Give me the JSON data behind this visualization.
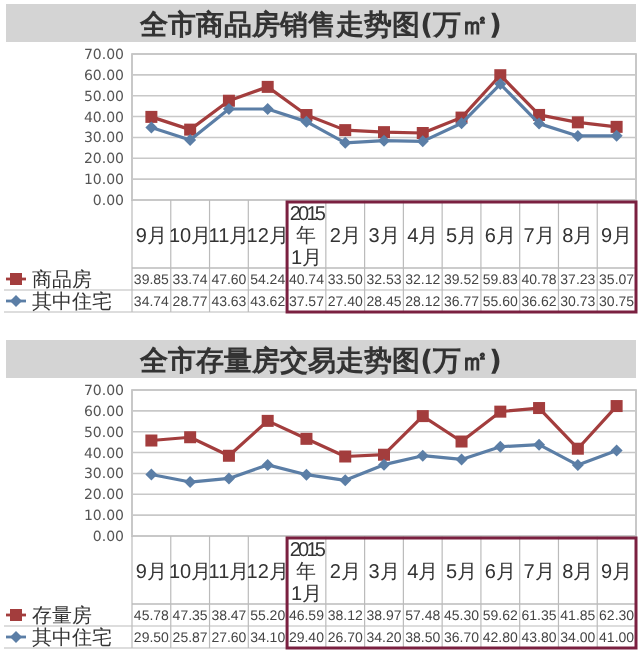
{
  "chart_data": [
    {
      "type": "line",
      "title": "全市商品房销售走势图(万㎡)",
      "categories": [
        "9月",
        "10月",
        "11月",
        "12月",
        "2015年1月",
        "2月",
        "3月",
        "4月",
        "5月",
        "6月",
        "7月",
        "8月",
        "9月"
      ],
      "ylim": [
        0,
        70
      ],
      "yticks": [
        {
          "value": 0,
          "label": "0.00"
        },
        {
          "value": 10,
          "label": "10.00"
        },
        {
          "value": 20,
          "label": "20.00"
        },
        {
          "value": 30,
          "label": "30.00"
        },
        {
          "value": 40,
          "label": "40.00"
        },
        {
          "value": 50,
          "label": "50.00"
        },
        {
          "value": 60,
          "label": "60.00"
        },
        {
          "value": 70,
          "label": "70.00"
        }
      ],
      "grid": "y",
      "legend": "bottom",
      "series": [
        {
          "name": "商品房",
          "color": "#a33d3d",
          "marker": "square",
          "values": [
            39.85,
            33.74,
            47.6,
            54.24,
            40.74,
            33.5,
            32.53,
            32.12,
            39.52,
            59.83,
            40.78,
            37.23,
            35.07
          ],
          "value_labels": [
            "39.85",
            "33.74",
            "47.60",
            "54.24",
            "40.74",
            "33.50",
            "32.53",
            "32.12",
            "39.52",
            "59.83",
            "40.78",
            "37.23",
            "35.07"
          ]
        },
        {
          "name": "其中住宅",
          "color": "#5b7ea6",
          "marker": "diamond",
          "values": [
            34.74,
            28.77,
            43.63,
            43.62,
            37.57,
            27.4,
            28.45,
            28.12,
            36.77,
            55.6,
            36.62,
            30.73,
            30.75
          ],
          "value_labels": [
            "34.74",
            "28.77",
            "43.63",
            "43.62",
            "37.57",
            "27.40",
            "28.45",
            "28.12",
            "36.77",
            "55.60",
            "36.62",
            "30.73",
            "30.75"
          ]
        }
      ]
    },
    {
      "type": "line",
      "title": "全市存量房交易走势图(万㎡)",
      "categories": [
        "9月",
        "10月",
        "11月",
        "12月",
        "2015年1月",
        "2月",
        "3月",
        "4月",
        "5月",
        "6月",
        "7月",
        "8月",
        "9月"
      ],
      "ylim": [
        0,
        70
      ],
      "yticks": [
        {
          "value": 0,
          "label": "0.00"
        },
        {
          "value": 10,
          "label": "10.00"
        },
        {
          "value": 20,
          "label": "20.00"
        },
        {
          "value": 30,
          "label": "30.00"
        },
        {
          "value": 40,
          "label": "40.00"
        },
        {
          "value": 50,
          "label": "50.00"
        },
        {
          "value": 60,
          "label": "60.00"
        },
        {
          "value": 70,
          "label": "70.00"
        }
      ],
      "grid": "y",
      "legend": "bottom",
      "series": [
        {
          "name": "存量房",
          "color": "#a33d3d",
          "marker": "square",
          "values": [
            45.78,
            47.35,
            38.47,
            55.2,
            46.59,
            38.12,
            38.97,
            57.48,
            45.3,
            59.62,
            61.35,
            41.85,
            62.3
          ],
          "value_labels": [
            "45.78",
            "47.35",
            "38.47",
            "55.20",
            "46.59",
            "38.12",
            "38.97",
            "57.48",
            "45.30",
            "59.62",
            "61.35",
            "41.85",
            "62.30"
          ]
        },
        {
          "name": "其中住宅",
          "color": "#5b7ea6",
          "marker": "diamond",
          "values": [
            29.5,
            25.87,
            27.6,
            34.1,
            29.4,
            26.7,
            34.2,
            38.5,
            36.7,
            42.8,
            43.8,
            34.0,
            41.0
          ],
          "value_labels": [
            "29.50",
            "25.87",
            "27.60",
            "34.10",
            "29.40",
            "26.70",
            "34.20",
            "38.50",
            "36.70",
            "42.80",
            "43.80",
            "34.00",
            "41.00"
          ]
        }
      ]
    }
  ]
}
